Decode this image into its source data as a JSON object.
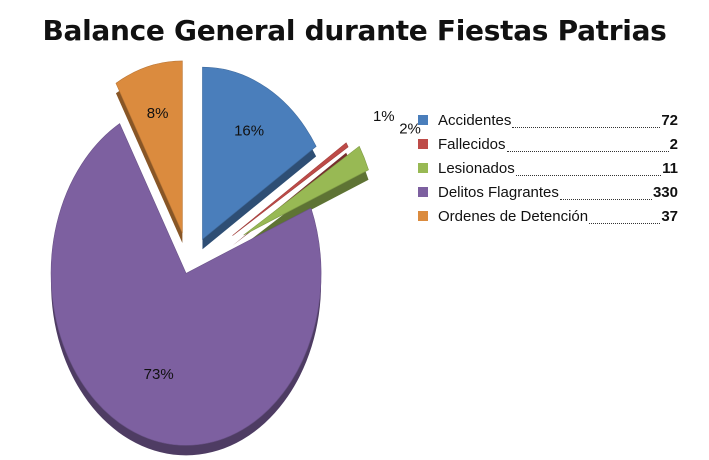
{
  "chart_data": {
    "type": "pie",
    "title": "Balance General durante Fiestas Patrias",
    "categories": [
      "Accidentes",
      "Fallecidos",
      "Lesionados",
      "Delitos Flagrantes",
      "Ordenes de Detención"
    ],
    "values": [
      72,
      2,
      11,
      330,
      37
    ],
    "percent_labels": [
      "16%",
      "1%",
      "2%",
      "73%",
      "8%"
    ],
    "colors": [
      "#4A7EBB",
      "#BE4B48",
      "#98B954",
      "#7D60A0",
      "#DB8B3E"
    ],
    "exploded": true,
    "style": "3d",
    "legend_position": "right"
  }
}
